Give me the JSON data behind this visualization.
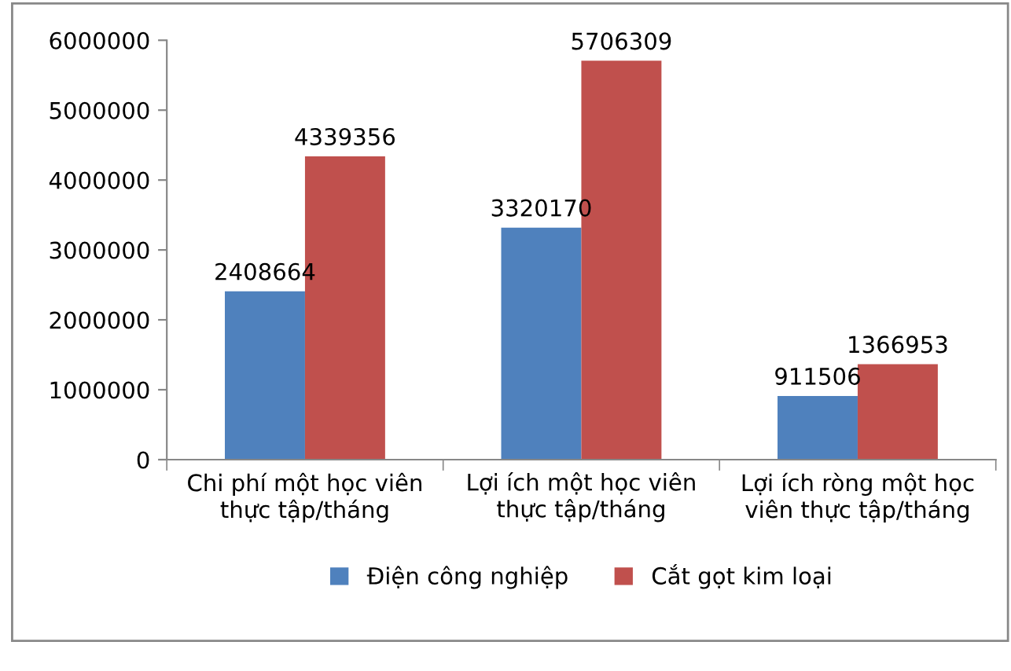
{
  "chart_data": {
    "type": "bar",
    "categories": [
      "Chi phí một học viên\nthực tập/tháng",
      "Lợi ích một học viên\nthực tập/tháng",
      "Lợi ích ròng một học\nviên thực tập/tháng"
    ],
    "series": [
      {
        "name": "Điện công nghiệp",
        "color": "#4f81bd",
        "values": [
          2408664,
          3320170,
          911506
        ]
      },
      {
        "name": "Cắt gọt kim loại",
        "color": "#c0504d",
        "values": [
          4339356,
          5706309,
          1366953
        ]
      }
    ],
    "ylim": [
      0,
      6000000
    ],
    "yticks": [
      0,
      1000000,
      2000000,
      3000000,
      4000000,
      5000000,
      6000000
    ],
    "grid": false,
    "legend": "bottom",
    "data_labels": true
  }
}
